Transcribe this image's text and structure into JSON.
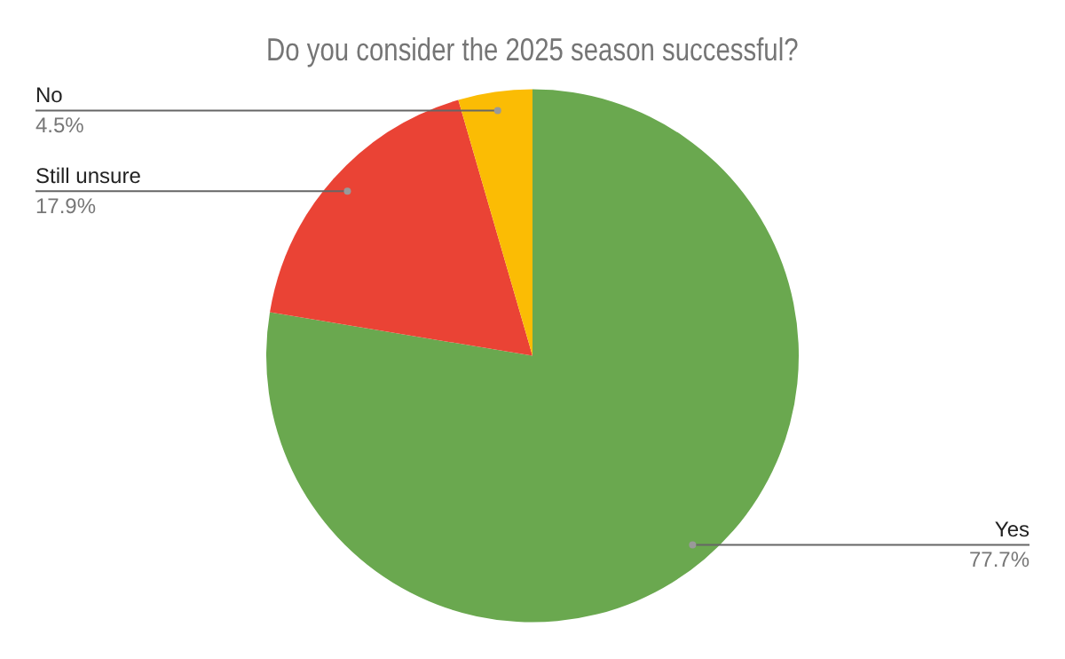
{
  "chart_data": {
    "type": "pie",
    "title": "Do you consider the 2025 season successful?",
    "categories": [
      "Yes",
      "Still unsure",
      "No"
    ],
    "values": [
      77.7,
      17.9,
      4.5
    ],
    "colors": [
      "#6aa84f",
      "#ea4335",
      "#fbbc04"
    ],
    "value_labels": [
      "77.7%",
      "17.9%",
      "4.5%"
    ],
    "legend": false
  }
}
